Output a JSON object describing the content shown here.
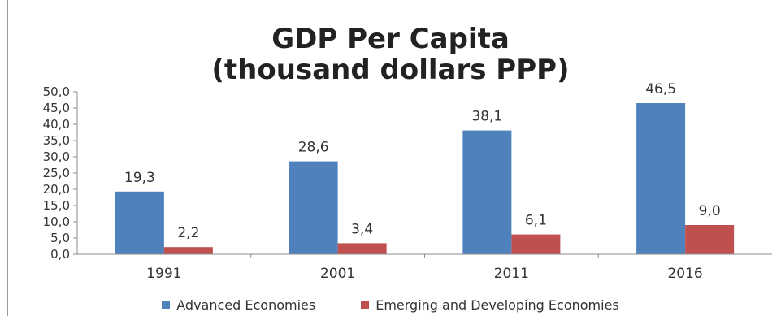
{
  "chart_data": {
    "type": "bar",
    "title_line1": "GDP Per Capita",
    "title_line2": "(thousand dollars PPP)",
    "categories": [
      "1991",
      "2001",
      "2011",
      "2016"
    ],
    "series": [
      {
        "name": "Advanced Economies",
        "color": "#4f81bd",
        "values": [
          19.3,
          28.6,
          38.1,
          46.5
        ],
        "labels": [
          "19,3",
          "28,6",
          "38,1",
          "46,5"
        ]
      },
      {
        "name": "Emerging and Developing Economies",
        "color": "#c0504d",
        "values": [
          2.2,
          3.4,
          6.1,
          9.0
        ],
        "labels": [
          "2,2",
          "3,4",
          "6,1",
          "9,0"
        ]
      }
    ],
    "y_ticks": [
      "0,0",
      "5,0",
      "10,0",
      "15,0",
      "20,0",
      "25,0",
      "30,0",
      "35,0",
      "40,0",
      "45,0",
      "50,0"
    ],
    "ylim": [
      0,
      50
    ],
    "grid": false,
    "legend_position": "bottom"
  }
}
